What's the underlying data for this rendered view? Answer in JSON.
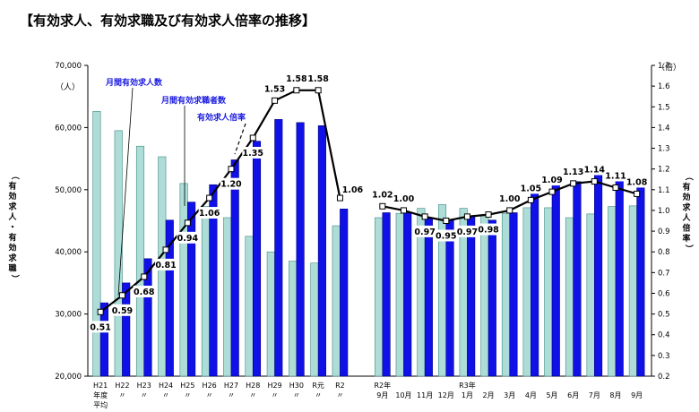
{
  "title": "【有効求人、有効求職及び有効求人倍率の推移】",
  "left_axis": {
    "unit": "（人）",
    "label": "（有効求人・有効求職）",
    "min": 20000,
    "max": 70000,
    "ticks": [
      "20,000",
      "30,000",
      "40,000",
      "50,000",
      "60,000",
      "70,000"
    ],
    "tick_values": [
      20000,
      30000,
      40000,
      50000,
      60000,
      70000
    ]
  },
  "right_axis": {
    "unit": "（倍）",
    "label": "（有効求人倍率）",
    "min": 0.2,
    "max": 1.7,
    "ticks": [
      "0.2",
      "0.3",
      "0.4",
      "0.5",
      "0.6",
      "0.7",
      "0.8",
      "0.9",
      "1.0",
      "1.1",
      "1.2",
      "1.3",
      "1.4",
      "1.5",
      "1.6",
      "1.7"
    ],
    "tick_values": [
      0.2,
      0.3,
      0.4,
      0.5,
      0.6,
      0.7,
      0.8,
      0.9,
      1.0,
      1.1,
      1.2,
      1.3,
      1.4,
      1.5,
      1.6,
      1.7
    ]
  },
  "annotations": {
    "kyujin": "月間有効求人数",
    "kyushoku": "月間有効求職者数",
    "ratio": "有効求人倍率"
  },
  "colors": {
    "kyushoku_fill": "#aedcd6",
    "kyushoku_stroke": "#3e8c86",
    "kyujin_fill": "#1010e8",
    "kyujin_stroke": "#00007a",
    "line": "#000000",
    "annotation_text": "#1a1ae0"
  },
  "chart_data": {
    "type": "bar",
    "groups": [
      {
        "name": "annual",
        "categories": [
          {
            "l1": "H21",
            "l2": "年度",
            "l3": "平均"
          },
          {
            "l1": "H22",
            "l2": "〃",
            "l3": ""
          },
          {
            "l1": "H23",
            "l2": "〃",
            "l3": ""
          },
          {
            "l1": "H24",
            "l2": "〃",
            "l3": ""
          },
          {
            "l1": "H25",
            "l2": "〃",
            "l3": ""
          },
          {
            "l1": "H26",
            "l2": "〃",
            "l3": ""
          },
          {
            "l1": "H27",
            "l2": "〃",
            "l3": ""
          },
          {
            "l1": "H28",
            "l2": "〃",
            "l3": ""
          },
          {
            "l1": "H29",
            "l2": "〃",
            "l3": ""
          },
          {
            "l1": "H30",
            "l2": "〃",
            "l3": ""
          },
          {
            "l1": "R元",
            "l2": "〃",
            "l3": ""
          },
          {
            "l1": "R2",
            "l2": "〃",
            "l3": ""
          }
        ],
        "kyushoku": [
          62600,
          59500,
          57000,
          55300,
          51000,
          47300,
          45500,
          42500,
          40000,
          38500,
          38200,
          44200
        ],
        "kyujin": [
          31800,
          35000,
          38900,
          45100,
          48000,
          50800,
          54800,
          57800,
          61300,
          60800,
          60300,
          46900
        ],
        "ratio": [
          0.51,
          0.59,
          0.68,
          0.81,
          0.94,
          1.06,
          1.2,
          1.35,
          1.53,
          1.58,
          1.58,
          1.06
        ],
        "ratio_labels": [
          "0.51",
          "0.59",
          "0.68",
          "0.81",
          "0.94",
          "1.06",
          "1.20",
          "1.35",
          "1.53",
          "1.58",
          "1.58",
          "1.06"
        ]
      },
      {
        "name": "monthly",
        "categories": [
          {
            "l1": "R2年",
            "l2": "9月",
            "l3": ""
          },
          {
            "l1": "",
            "l2": "10月",
            "l3": ""
          },
          {
            "l1": "",
            "l2": "11月",
            "l3": ""
          },
          {
            "l1": "",
            "l2": "12月",
            "l3": ""
          },
          {
            "l1": "R3年",
            "l2": "1月",
            "l3": ""
          },
          {
            "l1": "",
            "l2": "2月",
            "l3": ""
          },
          {
            "l1": "",
            "l2": "3月",
            "l3": ""
          },
          {
            "l1": "",
            "l2": "4月",
            "l3": ""
          },
          {
            "l1": "",
            "l2": "5月",
            "l3": ""
          },
          {
            "l1": "",
            "l2": "6月",
            "l3": ""
          },
          {
            "l1": "",
            "l2": "7月",
            "l3": ""
          },
          {
            "l1": "",
            "l2": "8月",
            "l3": ""
          },
          {
            "l1": "",
            "l2": "9月",
            "l3": ""
          }
        ],
        "kyushoku": [
          45500,
          46200,
          47000,
          47600,
          47000,
          46000,
          46200,
          47100,
          47100,
          45500,
          46100,
          47300,
          47400
        ],
        "kyujin": [
          46300,
          46300,
          45500,
          45200,
          45800,
          45100,
          46300,
          49800,
          51400,
          51300,
          52600,
          52500,
          51200
        ],
        "ratio": [
          1.02,
          1.0,
          0.97,
          0.95,
          0.97,
          0.98,
          1.0,
          1.05,
          1.09,
          1.13,
          1.14,
          1.11,
          1.08
        ],
        "ratio_labels": [
          "1.02",
          "1.00",
          "0.97",
          "0.95",
          "0.97",
          "0.98",
          "1.00",
          "1.05",
          "1.09",
          "1.13",
          "1.14",
          "1.11",
          "1.08"
        ]
      }
    ]
  }
}
